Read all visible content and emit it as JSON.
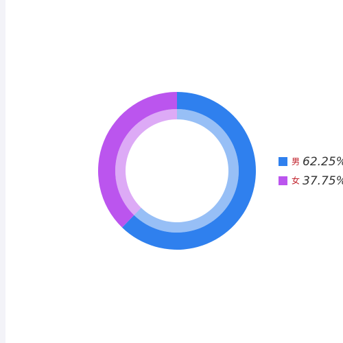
{
  "chart_data": {
    "type": "pie",
    "categories": [
      "男",
      "女"
    ],
    "values": [
      62.25,
      37.75
    ],
    "value_labels": [
      "62.25%",
      "37.75%"
    ],
    "colors": [
      "#2f80ee",
      "#bb55ee"
    ],
    "legend": "right"
  }
}
